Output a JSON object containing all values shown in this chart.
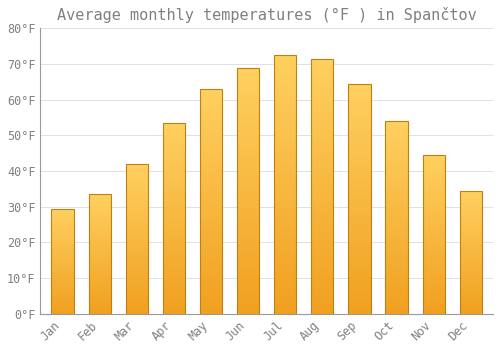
{
  "title": "Average monthly temperatures (°F ) in Spančtov",
  "months": [
    "Jan",
    "Feb",
    "Mar",
    "Apr",
    "May",
    "Jun",
    "Jul",
    "Aug",
    "Sep",
    "Oct",
    "Nov",
    "Dec"
  ],
  "values": [
    29.5,
    33.5,
    42.0,
    53.5,
    63.0,
    69.0,
    72.5,
    71.5,
    64.5,
    54.0,
    44.5,
    34.5
  ],
  "bar_color_top": "#FFD060",
  "bar_color_bottom": "#F0A020",
  "bar_edge_color": "#C08010",
  "background_color": "#FFFFFF",
  "grid_color": "#E0E0E8",
  "text_color": "#808080",
  "spine_color": "#999999",
  "ylim": [
    0,
    80
  ],
  "yticks": [
    0,
    10,
    20,
    30,
    40,
    50,
    60,
    70,
    80
  ],
  "ytick_labels": [
    "0°F",
    "10°F",
    "20°F",
    "30°F",
    "40°F",
    "50°F",
    "60°F",
    "70°F",
    "80°F"
  ],
  "title_fontsize": 11,
  "tick_fontsize": 8.5,
  "font_family": "monospace",
  "bar_width": 0.6
}
